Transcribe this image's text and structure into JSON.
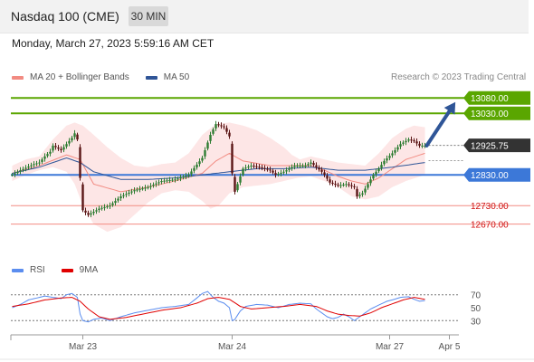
{
  "header": {
    "title": "Nasdaq 100 (CME)",
    "timeframe": "30 MIN"
  },
  "datetime": "Monday, March 27, 2023 5:59:16 AM CET",
  "copyright": "Research © 2023 Trading Central",
  "colors": {
    "up": "#2e7d32",
    "down": "#5a1515",
    "ma20": "#f28b82",
    "bands_fill": "#fde2e2",
    "ma50": "#2f5597",
    "resistance": "#5aa600",
    "pivot": "#3c78d8",
    "support": "#f28b82",
    "rsi": "#5b8def",
    "rsi_ma": "#e00000",
    "arrow": "#2f5597",
    "price_label_bg": "#333333"
  },
  "chart_data": [
    {
      "type": "candlestick",
      "legend": [
        {
          "label": "MA 20 + Bollinger Bands",
          "color": "#f28b82"
        },
        {
          "label": "MA 50",
          "color": "#2f5597"
        }
      ],
      "ylim": [
        12610,
        13110
      ],
      "x_ticks": [
        "Mar 23",
        "Mar 24",
        "Mar 27",
        "Apr 5"
      ],
      "x_tick_index": [
        26,
        81,
        139,
        161
      ],
      "n_slots": 165,
      "levels": [
        {
          "value": 13080.0,
          "label": "13080.00",
          "kind": "resistance"
        },
        {
          "value": 13030.0,
          "label": "13030.00",
          "kind": "resistance"
        },
        {
          "value": 12830.0,
          "label": "12830.00",
          "kind": "pivot"
        },
        {
          "value": 12730.0,
          "label": "12730.00",
          "kind": "support"
        },
        {
          "value": 12670.0,
          "label": "12670.00",
          "kind": "support"
        }
      ],
      "last_price": {
        "value": 12925.75,
        "label": "12925.75"
      },
      "target_arrow": {
        "from_index": 152,
        "from_value": 12925,
        "to_index": 163,
        "to_value": 13065
      },
      "price_keys": [
        [
          0,
          12830
        ],
        [
          3,
          12845
        ],
        [
          8,
          12865
        ],
        [
          10,
          12870
        ],
        [
          12,
          12890
        ],
        [
          14,
          12905
        ],
        [
          15,
          12925
        ],
        [
          18,
          12910
        ],
        [
          20,
          12930
        ],
        [
          22,
          12950
        ],
        [
          23,
          12965
        ],
        [
          24,
          12945
        ],
        [
          25,
          12820
        ],
        [
          26,
          12715
        ],
        [
          28,
          12700
        ],
        [
          30,
          12710
        ],
        [
          32,
          12720
        ],
        [
          36,
          12730
        ],
        [
          40,
          12760
        ],
        [
          45,
          12780
        ],
        [
          50,
          12790
        ],
        [
          55,
          12810
        ],
        [
          60,
          12815
        ],
        [
          65,
          12830
        ],
        [
          70,
          12885
        ],
        [
          73,
          12960
        ],
        [
          75,
          12995
        ],
        [
          78,
          12985
        ],
        [
          80,
          12955
        ],
        [
          81,
          12835
        ],
        [
          82,
          12775
        ],
        [
          83,
          12800
        ],
        [
          85,
          12850
        ],
        [
          88,
          12860
        ],
        [
          91,
          12855
        ],
        [
          95,
          12845
        ],
        [
          97,
          12830
        ],
        [
          100,
          12840
        ],
        [
          104,
          12860
        ],
        [
          108,
          12860
        ],
        [
          110,
          12870
        ],
        [
          112,
          12855
        ],
        [
          114,
          12840
        ],
        [
          115,
          12830
        ],
        [
          117,
          12805
        ],
        [
          120,
          12795
        ],
        [
          123,
          12800
        ],
        [
          126,
          12790
        ],
        [
          127,
          12760
        ],
        [
          129,
          12770
        ],
        [
          131,
          12800
        ],
        [
          133,
          12830
        ],
        [
          135,
          12850
        ],
        [
          137,
          12875
        ],
        [
          140,
          12900
        ],
        [
          143,
          12930
        ],
        [
          146,
          12945
        ],
        [
          148,
          12940
        ],
        [
          150,
          12925
        ],
        [
          152,
          12925
        ]
      ],
      "ma20_keys": [
        [
          0,
          12835
        ],
        [
          10,
          12860
        ],
        [
          20,
          12895
        ],
        [
          25,
          12880
        ],
        [
          30,
          12800
        ],
        [
          40,
          12775
        ],
        [
          50,
          12790
        ],
        [
          60,
          12810
        ],
        [
          70,
          12835
        ],
        [
          75,
          12875
        ],
        [
          80,
          12900
        ],
        [
          85,
          12875
        ],
        [
          95,
          12860
        ],
        [
          105,
          12860
        ],
        [
          110,
          12860
        ],
        [
          115,
          12845
        ],
        [
          120,
          12825
        ],
        [
          125,
          12810
        ],
        [
          130,
          12800
        ],
        [
          135,
          12820
        ],
        [
          140,
          12850
        ],
        [
          145,
          12880
        ],
        [
          152,
          12900
        ]
      ],
      "upper_keys": [
        [
          0,
          12860
        ],
        [
          5,
          12880
        ],
        [
          10,
          12890
        ],
        [
          15,
          12945
        ],
        [
          20,
          12990
        ],
        [
          23,
          13000
        ],
        [
          26,
          12990
        ],
        [
          30,
          12960
        ],
        [
          35,
          12920
        ],
        [
          40,
          12885
        ],
        [
          45,
          12860
        ],
        [
          50,
          12855
        ],
        [
          55,
          12865
        ],
        [
          60,
          12870
        ],
        [
          65,
          12900
        ],
        [
          70,
          12960
        ],
        [
          75,
          12995
        ],
        [
          80,
          13000
        ],
        [
          85,
          12990
        ],
        [
          90,
          12975
        ],
        [
          95,
          12950
        ],
        [
          100,
          12920
        ],
        [
          103,
          12895
        ],
        [
          106,
          12880
        ],
        [
          110,
          12890
        ],
        [
          115,
          12880
        ],
        [
          120,
          12870
        ],
        [
          125,
          12865
        ],
        [
          130,
          12860
        ],
        [
          135,
          12900
        ],
        [
          140,
          12950
        ],
        [
          145,
          12980
        ],
        [
          148,
          12990
        ],
        [
          152,
          12985
        ]
      ],
      "lower_keys": [
        [
          0,
          12810
        ],
        [
          5,
          12830
        ],
        [
          10,
          12845
        ],
        [
          15,
          12855
        ],
        [
          20,
          12840
        ],
        [
          23,
          12800
        ],
        [
          26,
          12730
        ],
        [
          30,
          12670
        ],
        [
          35,
          12645
        ],
        [
          40,
          12660
        ],
        [
          45,
          12700
        ],
        [
          50,
          12740
        ],
        [
          55,
          12770
        ],
        [
          60,
          12780
        ],
        [
          65,
          12775
        ],
        [
          70,
          12745
        ],
        [
          73,
          12720
        ],
        [
          76,
          12730
        ],
        [
          80,
          12770
        ],
        [
          85,
          12790
        ],
        [
          90,
          12795
        ],
        [
          95,
          12800
        ],
        [
          100,
          12810
        ],
        [
          105,
          12820
        ],
        [
          110,
          12825
        ],
        [
          115,
          12810
        ],
        [
          120,
          12790
        ],
        [
          125,
          12760
        ],
        [
          130,
          12750
        ],
        [
          135,
          12760
        ],
        [
          140,
          12790
        ],
        [
          145,
          12810
        ],
        [
          152,
          12830
        ]
      ],
      "ma50_keys": [
        [
          0,
          12835
        ],
        [
          10,
          12855
        ],
        [
          20,
          12885
        ],
        [
          25,
          12870
        ],
        [
          30,
          12840
        ],
        [
          40,
          12815
        ],
        [
          50,
          12815
        ],
        [
          60,
          12820
        ],
        [
          70,
          12830
        ],
        [
          80,
          12840
        ],
        [
          90,
          12850
        ],
        [
          100,
          12850
        ],
        [
          110,
          12855
        ],
        [
          120,
          12845
        ],
        [
          130,
          12845
        ],
        [
          140,
          12855
        ],
        [
          152,
          12870
        ]
      ]
    },
    {
      "type": "line",
      "legend": [
        {
          "label": "RSI",
          "color": "#5b8def"
        },
        {
          "label": "9MA",
          "color": "#e00000"
        }
      ],
      "ylim": [
        15,
        85
      ],
      "y_ticks": [
        70,
        50,
        30
      ],
      "guides": [
        70,
        30
      ],
      "rsi_keys": [
        [
          0,
          50
        ],
        [
          3,
          55
        ],
        [
          6,
          62
        ],
        [
          9,
          65
        ],
        [
          12,
          68
        ],
        [
          15,
          66
        ],
        [
          18,
          64
        ],
        [
          20,
          70
        ],
        [
          22,
          72
        ],
        [
          24,
          66
        ],
        [
          25,
          40
        ],
        [
          26,
          30
        ],
        [
          28,
          28
        ],
        [
          30,
          32
        ],
        [
          33,
          34
        ],
        [
          36,
          30
        ],
        [
          40,
          36
        ],
        [
          45,
          42
        ],
        [
          50,
          46
        ],
        [
          55,
          50
        ],
        [
          60,
          52
        ],
        [
          65,
          55
        ],
        [
          68,
          65
        ],
        [
          70,
          72
        ],
        [
          72,
          75
        ],
        [
          74,
          66
        ],
        [
          76,
          60
        ],
        [
          78,
          57
        ],
        [
          80,
          50
        ],
        [
          81,
          30
        ],
        [
          82,
          32
        ],
        [
          84,
          45
        ],
        [
          86,
          52
        ],
        [
          90,
          55
        ],
        [
          94,
          54
        ],
        [
          98,
          50
        ],
        [
          102,
          55
        ],
        [
          106,
          57
        ],
        [
          110,
          56
        ],
        [
          112,
          48
        ],
        [
          114,
          42
        ],
        [
          116,
          36
        ],
        [
          118,
          33
        ],
        [
          120,
          35
        ],
        [
          122,
          40
        ],
        [
          124,
          36
        ],
        [
          126,
          30
        ],
        [
          128,
          36
        ],
        [
          130,
          42
        ],
        [
          132,
          48
        ],
        [
          134,
          52
        ],
        [
          136,
          56
        ],
        [
          138,
          60
        ],
        [
          140,
          62
        ],
        [
          143,
          66
        ],
        [
          146,
          67
        ],
        [
          148,
          63
        ],
        [
          150,
          60
        ],
        [
          152,
          61
        ]
      ],
      "ma_keys": [
        [
          0,
          52
        ],
        [
          6,
          56
        ],
        [
          12,
          62
        ],
        [
          18,
          65
        ],
        [
          22,
          66
        ],
        [
          25,
          60
        ],
        [
          28,
          48
        ],
        [
          32,
          36
        ],
        [
          36,
          32
        ],
        [
          42,
          35
        ],
        [
          48,
          40
        ],
        [
          55,
          46
        ],
        [
          62,
          50
        ],
        [
          68,
          57
        ],
        [
          72,
          64
        ],
        [
          76,
          66
        ],
        [
          80,
          63
        ],
        [
          84,
          52
        ],
        [
          88,
          48
        ],
        [
          94,
          50
        ],
        [
          100,
          52
        ],
        [
          106,
          55
        ],
        [
          112,
          52
        ],
        [
          116,
          45
        ],
        [
          120,
          40
        ],
        [
          124,
          38
        ],
        [
          128,
          37
        ],
        [
          132,
          42
        ],
        [
          136,
          50
        ],
        [
          140,
          56
        ],
        [
          144,
          62
        ],
        [
          148,
          66
        ],
        [
          152,
          63
        ]
      ]
    }
  ]
}
